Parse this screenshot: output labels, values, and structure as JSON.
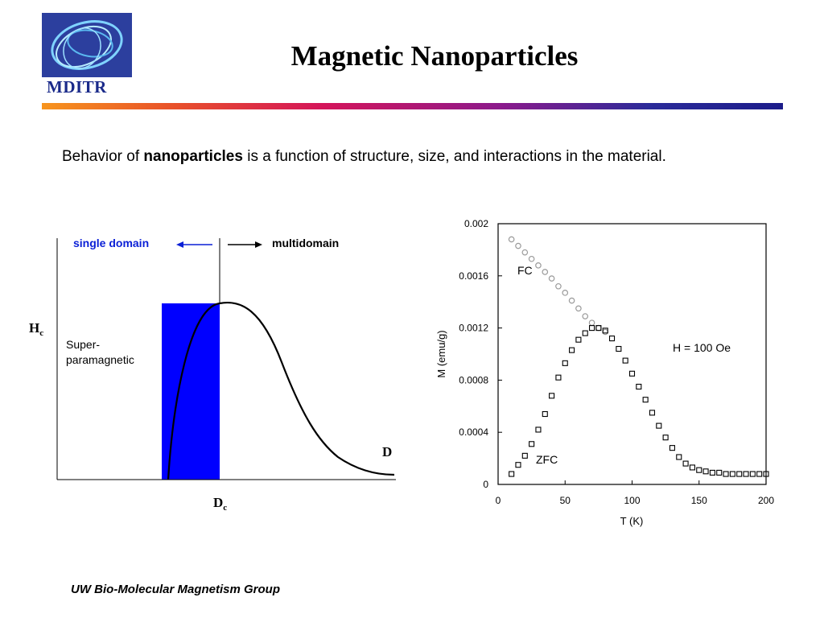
{
  "logo": {
    "text": "MDITR"
  },
  "title": "Magnetic Nanoparticles",
  "intro": {
    "prefix": "Behavior of ",
    "bold": "nanoparticles",
    "suffix": " is a function of structure, size, and interactions in the material."
  },
  "diagram": {
    "single_domain_label": "single domain",
    "multidomain_label": "multidomain",
    "y_label_main": "H",
    "y_label_sub": "c",
    "x_label_main": "D",
    "x_label_sub": "c",
    "axis_end_label": "D",
    "region_label_line1": "Super-",
    "region_label_line2": "paramagnetic",
    "colors": {
      "fill": "#0000ff",
      "label": "#0a1fd6"
    }
  },
  "chart_data": {
    "type": "scatter",
    "ylabel": "M (emu/g)",
    "xlabel": "T (K)",
    "xlim": [
      0,
      200
    ],
    "ylim": [
      0,
      0.002
    ],
    "x_ticks": [
      "0",
      "50",
      "100",
      "150",
      "200"
    ],
    "y_ticks": [
      "0",
      "0.0004",
      "0.0008",
      "0.0012",
      "0.0016",
      "0.002"
    ],
    "annotation": "H = 100 Oe",
    "series": [
      {
        "name": "FC",
        "marker": "circle",
        "points": [
          [
            10,
            0.00188
          ],
          [
            15,
            0.00183
          ],
          [
            20,
            0.00178
          ],
          [
            25,
            0.00173
          ],
          [
            30,
            0.00168
          ],
          [
            35,
            0.00163
          ],
          [
            40,
            0.00158
          ],
          [
            45,
            0.00152
          ],
          [
            50,
            0.00147
          ],
          [
            55,
            0.00141
          ],
          [
            60,
            0.00135
          ],
          [
            65,
            0.00129
          ],
          [
            70,
            0.00124
          ],
          [
            75,
            0.0012
          ],
          [
            80,
            0.00117
          ]
        ]
      },
      {
        "name": "ZFC",
        "marker": "square",
        "points": [
          [
            10,
            8e-05
          ],
          [
            15,
            0.00015
          ],
          [
            20,
            0.00022
          ],
          [
            25,
            0.00031
          ],
          [
            30,
            0.00042
          ],
          [
            35,
            0.00054
          ],
          [
            40,
            0.00068
          ],
          [
            45,
            0.00082
          ],
          [
            50,
            0.00093
          ],
          [
            55,
            0.00103
          ],
          [
            60,
            0.00111
          ],
          [
            65,
            0.00116
          ],
          [
            70,
            0.0012
          ],
          [
            75,
            0.0012
          ],
          [
            80,
            0.00118
          ],
          [
            85,
            0.00112
          ],
          [
            90,
            0.00104
          ],
          [
            95,
            0.00095
          ],
          [
            100,
            0.00085
          ],
          [
            105,
            0.00075
          ],
          [
            110,
            0.00065
          ],
          [
            115,
            0.00055
          ],
          [
            120,
            0.00045
          ],
          [
            125,
            0.00036
          ],
          [
            130,
            0.00028
          ],
          [
            135,
            0.00021
          ],
          [
            140,
            0.00016
          ],
          [
            145,
            0.00013
          ],
          [
            150,
            0.00011
          ],
          [
            155,
            0.0001
          ],
          [
            160,
            9e-05
          ],
          [
            165,
            9e-05
          ],
          [
            170,
            8e-05
          ],
          [
            175,
            8e-05
          ],
          [
            180,
            8e-05
          ],
          [
            185,
            8e-05
          ],
          [
            190,
            8e-05
          ],
          [
            195,
            8e-05
          ],
          [
            200,
            8e-05
          ]
        ]
      }
    ]
  },
  "footer": "UW Bio-Molecular Magnetism Group"
}
